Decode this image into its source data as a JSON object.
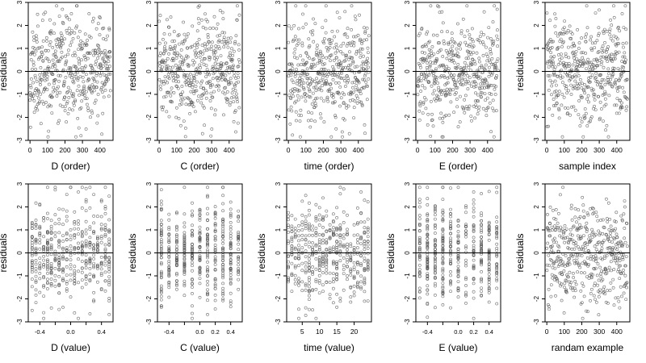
{
  "chart_data": [
    {
      "type": "scatter",
      "xlabel": "D (order)",
      "ylabel": "residuals",
      "xlim": [
        -10,
        475
      ],
      "ylim": [
        -3,
        3
      ],
      "xticks": [
        0,
        100,
        200,
        300,
        400
      ],
      "yticks": [
        -3,
        -2,
        -1,
        0,
        1,
        2,
        3
      ],
      "reference_line_y": 0,
      "seed": 11,
      "n": 460,
      "x_mode": "uniform",
      "x_range": [
        0,
        460
      ],
      "x": [],
      "y": []
    },
    {
      "type": "scatter",
      "xlabel": "C (order)",
      "ylabel": "residuals",
      "xlim": [
        -10,
        475
      ],
      "ylim": [
        -3,
        3
      ],
      "xticks": [
        0,
        100,
        200,
        300,
        400
      ],
      "yticks": [
        -3,
        -2,
        -1,
        0,
        1,
        2,
        3
      ],
      "reference_line_y": 0,
      "seed": 23,
      "n": 460,
      "x_mode": "uniform",
      "x_range": [
        0,
        460
      ],
      "x": [],
      "y": []
    },
    {
      "type": "scatter",
      "xlabel": "time (order)",
      "ylabel": "residuals",
      "xlim": [
        -10,
        475
      ],
      "ylim": [
        -3,
        3
      ],
      "xticks": [
        0,
        100,
        200,
        300,
        400
      ],
      "yticks": [
        -3,
        -2,
        -1,
        0,
        1,
        2,
        3
      ],
      "reference_line_y": 0,
      "seed": 37,
      "n": 460,
      "x_mode": "uniform",
      "x_range": [
        0,
        460
      ],
      "x": [],
      "y": []
    },
    {
      "type": "scatter",
      "xlabel": "E (order)",
      "ylabel": "residuals",
      "xlim": [
        -10,
        475
      ],
      "ylim": [
        -3,
        3
      ],
      "xticks": [
        0,
        100,
        200,
        300,
        400
      ],
      "yticks": [
        -3,
        -2,
        -1,
        0,
        1,
        2,
        3
      ],
      "reference_line_y": 0,
      "seed": 41,
      "n": 460,
      "x_mode": "uniform",
      "x_range": [
        0,
        460
      ],
      "x": [],
      "y": []
    },
    {
      "type": "scatter",
      "xlabel": "sample index",
      "ylabel": "residuals",
      "xlim": [
        -10,
        475
      ],
      "ylim": [
        -3,
        3
      ],
      "xticks": [
        0,
        100,
        200,
        300,
        400
      ],
      "yticks": [
        -3,
        -2,
        -1,
        0,
        1,
        2,
        3
      ],
      "reference_line_y": 0,
      "seed": 53,
      "n": 460,
      "x_mode": "uniform",
      "x_range": [
        0,
        460
      ],
      "x": [],
      "y": []
    },
    {
      "type": "scatter",
      "xlabel": "D (value)",
      "ylabel": "residuals",
      "xlim": [
        -0.55,
        0.55
      ],
      "ylim": [
        -3,
        3
      ],
      "xticks": [
        -0.4,
        -0.2,
        0.0,
        0.2,
        0.4
      ],
      "yticks": [
        -3,
        -2,
        -1,
        0,
        1,
        2,
        3
      ],
      "xtick_labels": [
        "-0.4",
        "",
        "0.0",
        "",
        "0.4"
      ],
      "reference_line_y": 0,
      "seed": 67,
      "n": 460,
      "x_mode": "columns",
      "x_levels": [
        -0.5,
        -0.45,
        -0.4,
        -0.35,
        -0.3,
        -0.25,
        -0.2,
        -0.15,
        -0.1,
        -0.05,
        0.0,
        0.05,
        0.1,
        0.15,
        0.2,
        0.25,
        0.3,
        0.35,
        0.4,
        0.45,
        0.5
      ],
      "x": [],
      "y": []
    },
    {
      "type": "scatter",
      "xlabel": "C (value)",
      "ylabel": "residuals",
      "xlim": [
        -0.55,
        0.55
      ],
      "ylim": [
        -3,
        3
      ],
      "xticks": [
        -0.4,
        -0.2,
        0.0,
        0.2,
        0.4
      ],
      "yticks": [
        -3,
        -2,
        -1,
        0,
        1,
        2,
        3
      ],
      "xtick_labels": [
        "-0.4",
        "",
        "0.0",
        "0.2",
        "0.4"
      ],
      "reference_line_y": 0,
      "seed": 71,
      "n": 460,
      "x_mode": "columns",
      "x_levels": [
        -0.5,
        -0.4,
        -0.3,
        -0.2,
        -0.1,
        0.0,
        0.1,
        0.2,
        0.3,
        0.4,
        0.5
      ],
      "x": [],
      "y": []
    },
    {
      "type": "scatter",
      "xlabel": "time (value)",
      "ylabel": "residuals",
      "xlim": [
        0.5,
        25
      ],
      "ylim": [
        -3,
        3
      ],
      "xticks": [
        5,
        10,
        15,
        20
      ],
      "yticks": [
        -3,
        -2,
        -1,
        0,
        1,
        2,
        3
      ],
      "reference_line_y": 0,
      "seed": 83,
      "n": 460,
      "x_mode": "columns",
      "x_levels": [
        1,
        2,
        3,
        4,
        5,
        6,
        7,
        8,
        9,
        10,
        11,
        12,
        13,
        14,
        15,
        16,
        17,
        18,
        19,
        20,
        21,
        22,
        23,
        24
      ],
      "x": [],
      "y": []
    },
    {
      "type": "scatter",
      "xlabel": "E (value)",
      "ylabel": "residuals",
      "xlim": [
        -0.55,
        0.55
      ],
      "ylim": [
        -3,
        3
      ],
      "xticks": [
        -0.4,
        -0.2,
        0.0,
        0.2,
        0.4
      ],
      "yticks": [
        -3,
        -2,
        -1,
        0,
        1,
        2,
        3
      ],
      "xtick_labels": [
        "-0.4",
        "",
        "0.0",
        "0.2",
        "0.4"
      ],
      "reference_line_y": 0,
      "seed": 97,
      "n": 460,
      "x_mode": "columns",
      "x_levels": [
        -0.5,
        -0.4,
        -0.3,
        -0.2,
        -0.1,
        0.0,
        0.1,
        0.2,
        0.3,
        0.4,
        0.5
      ],
      "x": [],
      "y": []
    },
    {
      "type": "scatter",
      "xlabel": "randam example",
      "ylabel": "residuals",
      "xlim": [
        -10,
        475
      ],
      "ylim": [
        -3,
        3
      ],
      "xticks": [
        0,
        100,
        200,
        300,
        400
      ],
      "yticks": [
        -3,
        -2,
        -1,
        0,
        1,
        2,
        3
      ],
      "reference_line_y": 0,
      "seed": 101,
      "n": 460,
      "x_mode": "uniform",
      "x_range": [
        0,
        460
      ],
      "x": [],
      "y": []
    }
  ],
  "colors": {
    "points": "#555555",
    "axes": "#000000",
    "background": "#ffffff"
  }
}
